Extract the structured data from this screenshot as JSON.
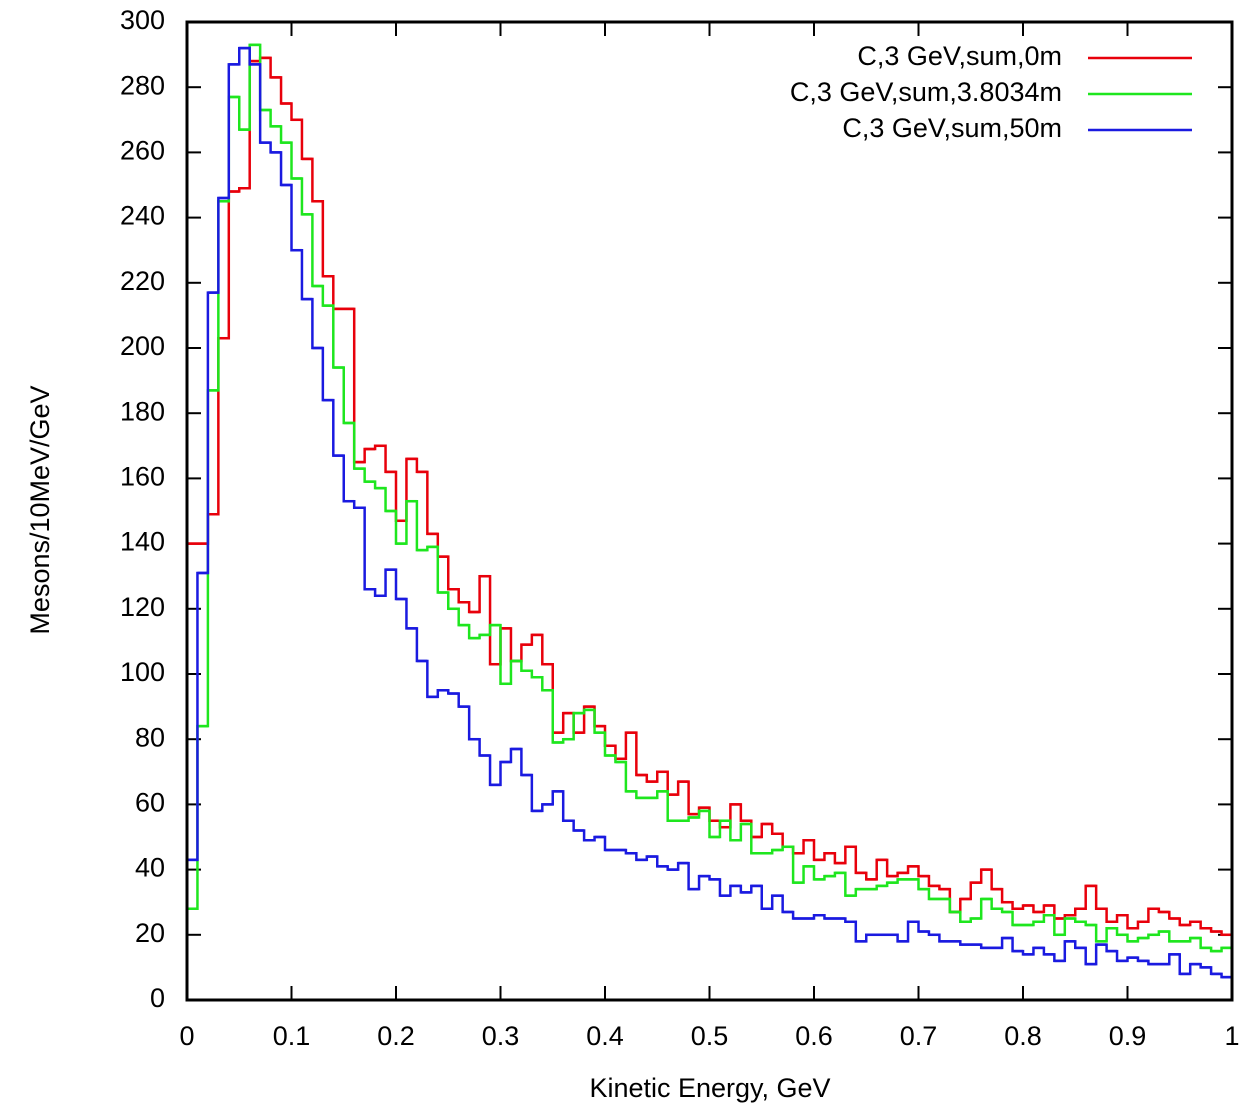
{
  "chart_data": {
    "type": "histogram",
    "xlabel": "Kinetic Energy, GeV",
    "ylabel": "Mesons/10MeV/GeV",
    "bins": [
      0,
      0.01,
      0.02,
      0.03,
      0.04,
      0.05,
      0.06,
      0.07,
      0.08,
      0.09,
      0.1,
      0.11,
      0.12,
      0.13,
      0.14,
      0.15,
      0.16,
      0.17,
      0.18,
      0.19,
      0.2,
      0.21,
      0.22,
      0.23,
      0.24,
      0.25,
      0.26,
      0.27,
      0.28,
      0.29,
      0.3,
      0.31,
      0.32,
      0.33,
      0.34,
      0.35,
      0.36,
      0.37,
      0.38,
      0.39,
      0.4,
      0.41,
      0.42,
      0.43,
      0.44,
      0.45,
      0.46,
      0.47,
      0.48,
      0.49,
      0.5,
      0.51,
      0.52,
      0.53,
      0.54,
      0.55,
      0.56,
      0.57,
      0.58,
      0.59,
      0.6,
      0.61,
      0.62,
      0.63,
      0.64,
      0.65,
      0.66,
      0.67,
      0.68,
      0.69,
      0.7,
      0.71,
      0.72,
      0.73,
      0.74,
      0.75,
      0.76,
      0.77,
      0.78,
      0.79,
      0.8,
      0.81,
      0.82,
      0.83,
      0.84,
      0.85,
      0.86,
      0.87,
      0.88,
      0.89,
      0.9,
      0.91,
      0.92,
      0.93,
      0.94,
      0.95,
      0.96,
      0.97,
      0.98,
      0.99,
      1
    ],
    "series": [
      {
        "name": "C,3 GeV,sum,0m",
        "color": "#e8000b",
        "values": [
          140,
          140,
          149,
          203,
          248,
          249,
          288,
          289,
          283,
          275,
          270,
          258,
          245,
          222,
          212,
          212,
          165,
          169,
          170,
          162,
          147,
          166,
          162,
          143,
          136,
          126,
          122,
          119,
          130,
          103,
          114,
          104,
          109,
          112,
          103,
          82,
          88,
          82,
          90,
          84,
          78,
          74,
          82,
          69,
          67,
          70,
          63,
          67,
          57,
          59,
          55,
          53,
          60,
          55,
          50,
          54,
          51,
          47,
          45,
          49,
          43,
          45,
          42,
          47,
          39,
          37,
          43,
          38,
          39,
          41,
          38,
          35,
          34,
          27,
          31,
          36,
          40,
          34,
          30,
          28,
          29,
          27,
          29,
          25,
          26,
          28,
          35,
          28,
          24,
          26,
          22,
          24,
          28,
          27,
          25,
          23,
          24,
          22,
          21,
          20
        ]
      },
      {
        "name": "C,3 GeV,sum,3.8034m",
        "color": "#1ee61e",
        "values": [
          28,
          84,
          187,
          245,
          277,
          267,
          293,
          273,
          268,
          263,
          252,
          241,
          219,
          213,
          194,
          177,
          163,
          159,
          157,
          150,
          140,
          153,
          138,
          139,
          125,
          120,
          115,
          111,
          112,
          115,
          97,
          104,
          101,
          99,
          95,
          79,
          80,
          88,
          89,
          82,
          75,
          73,
          64,
          62,
          62,
          64,
          55,
          55,
          56,
          58,
          50,
          55,
          49,
          54,
          45,
          45,
          46,
          47,
          36,
          41,
          37,
          38,
          39,
          32,
          34,
          34,
          35,
          36,
          37,
          37,
          34,
          31,
          31,
          27,
          24,
          25,
          31,
          28,
          27,
          23,
          23,
          24,
          26,
          20,
          25,
          24,
          23,
          18,
          22,
          20,
          18,
          19,
          20,
          21,
          18,
          18,
          19,
          16,
          15,
          16
        ]
      },
      {
        "name": "C,3 GeV,sum,50m",
        "color": "#1a1ae0",
        "values": [
          43,
          131,
          217,
          246,
          287,
          292,
          287,
          263,
          260,
          250,
          230,
          215,
          200,
          184,
          167,
          153,
          151,
          126,
          124,
          132,
          123,
          114,
          104,
          93,
          95,
          94,
          90,
          80,
          75,
          66,
          73,
          77,
          69,
          58,
          60,
          64,
          55,
          52,
          49,
          50,
          46,
          46,
          45,
          43,
          44,
          41,
          40,
          42,
          34,
          38,
          37,
          32,
          35,
          33,
          35,
          28,
          32,
          27,
          25,
          25,
          26,
          25,
          25,
          24,
          18,
          20,
          20,
          20,
          18,
          24,
          21,
          20,
          18,
          18,
          17,
          17,
          16,
          16,
          19,
          15,
          14,
          16,
          14,
          12,
          18,
          16,
          11,
          17,
          15,
          12,
          13,
          12,
          11,
          11,
          14,
          8,
          11,
          10,
          8,
          7
        ]
      }
    ],
    "xlim": [
      0,
      1
    ],
    "xticks": [
      0,
      0.1,
      0.2,
      0.3,
      0.4,
      0.5,
      0.6,
      0.7,
      0.8,
      0.9,
      1
    ],
    "ylim": [
      0,
      300
    ],
    "yticks": [
      0,
      20,
      40,
      60,
      80,
      100,
      120,
      140,
      160,
      180,
      200,
      220,
      240,
      260,
      280,
      300
    ],
    "legend": "upper-right"
  }
}
